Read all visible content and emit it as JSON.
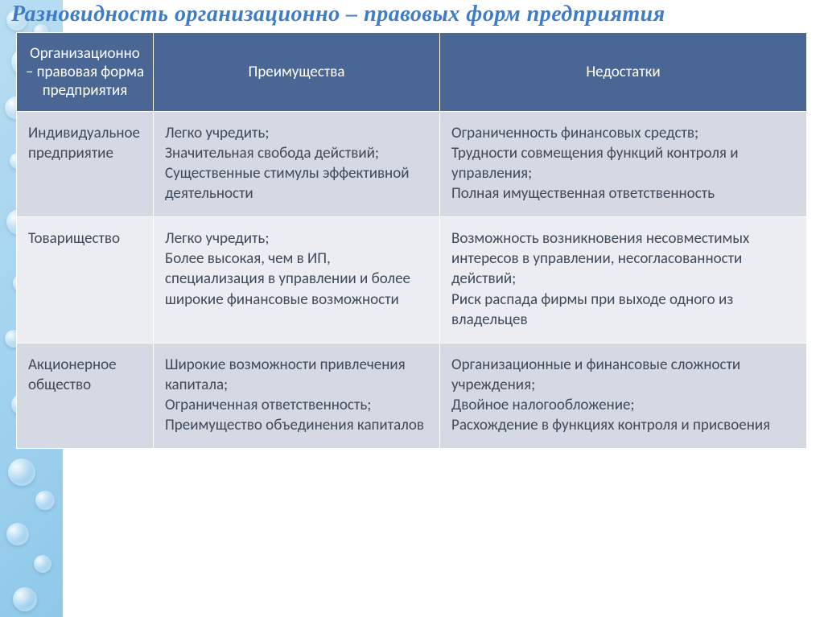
{
  "title": {
    "text": "Разновидность организационно – правовых форм предприятия",
    "color": "#3d7cc9",
    "fontsize": 28
  },
  "table": {
    "header_bg": "#4a6694",
    "header_color": "#ffffff",
    "row_odd_bg": "#d4d9e3",
    "row_even_bg": "#ebedf2",
    "body_text_color": "#3f4a5a",
    "body_fontsize": 19,
    "header_fontsize": 19,
    "columns": [
      "Организационно – правовая форма предприятия",
      "Преимущества",
      "Недостатки"
    ],
    "rows": [
      {
        "form": "Индивидуальное предприятие",
        "pros": "Легко учредить;\nЗначительная свобода действий;\nСущественные стимулы эффективной деятельности",
        "cons": "Ограниченность финансовых средств;\nТрудности совмещения функций контроля и управления;\nПолная имущественная ответственность"
      },
      {
        "form": "Товарищество",
        "pros": "Легко учредить;\nБолее высокая, чем в ИП, специализация в управлении и более широкие финансовые возможности",
        "cons": "Возможность возникновения несовместимых интересов в управлении, несогласованности действий;\nРиск распада фирмы при выходе одного из владельцев"
      },
      {
        "form": "Акционерное общество",
        "pros": "Широкие возможности привлечения капитала;\nОграниченная ответственность;\nПреимущество объединения капиталов",
        "cons": "Организационные и финансовые сложности учреждения;\nДвойное налогообложение;\nРасхождение в функциях контроля и присвоения"
      }
    ]
  },
  "bubbles": [
    {
      "l": 8,
      "t": 12,
      "s": 26
    },
    {
      "l": 42,
      "t": 30,
      "s": 18
    },
    {
      "l": 14,
      "t": 60,
      "s": 34
    },
    {
      "l": 48,
      "t": 90,
      "s": 22
    },
    {
      "l": 6,
      "t": 120,
      "s": 28
    },
    {
      "l": 40,
      "t": 150,
      "s": 30
    },
    {
      "l": 12,
      "t": 190,
      "s": 20
    },
    {
      "l": 46,
      "t": 220,
      "s": 26
    },
    {
      "l": 8,
      "t": 260,
      "s": 32
    },
    {
      "l": 44,
      "t": 300,
      "s": 18
    },
    {
      "l": 16,
      "t": 340,
      "s": 24
    },
    {
      "l": 48,
      "t": 370,
      "s": 28
    },
    {
      "l": 6,
      "t": 410,
      "s": 22
    },
    {
      "l": 40,
      "t": 450,
      "s": 30
    },
    {
      "l": 14,
      "t": 490,
      "s": 26
    },
    {
      "l": 46,
      "t": 530,
      "s": 20
    },
    {
      "l": 10,
      "t": 570,
      "s": 34
    },
    {
      "l": 44,
      "t": 610,
      "s": 24
    },
    {
      "l": 8,
      "t": 650,
      "s": 28
    },
    {
      "l": 42,
      "t": 690,
      "s": 22
    },
    {
      "l": 16,
      "t": 730,
      "s": 30
    }
  ]
}
